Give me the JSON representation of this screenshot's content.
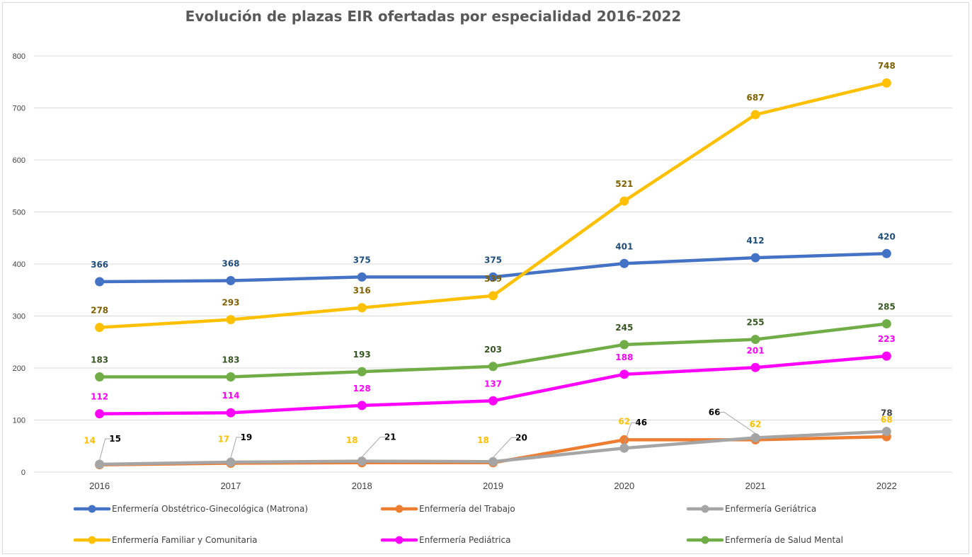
{
  "chart_data": {
    "type": "line",
    "title": "Evolución de plazas EIR ofertadas por especialidad 2016-2022",
    "xlabel": "",
    "ylabel": "",
    "categories": [
      "2016",
      "2017",
      "2018",
      "2019",
      "2020",
      "2021",
      "2022"
    ],
    "ylim": [
      0,
      800
    ],
    "yticks": [
      0,
      100,
      200,
      300,
      400,
      500,
      600,
      700,
      800
    ],
    "grid": true,
    "legend_position": "bottom",
    "series": [
      {
        "name": "Enfermería Obstétrico-Ginecológica (Matrona)",
        "color": "#4472C4",
        "label_color": "#1F4E79",
        "values": [
          366,
          368,
          375,
          375,
          401,
          412,
          420
        ],
        "labels": [
          "366",
          "368",
          "375",
          "375",
          "401",
          "412",
          "420"
        ]
      },
      {
        "name": "Enfermería Familiar y Comunitaria",
        "color": "#FFC000",
        "label_color": "#7F6000",
        "values": [
          278,
          293,
          316,
          339,
          521,
          687,
          748
        ],
        "labels": [
          "278",
          "293",
          "316",
          "339",
          "521",
          "687",
          "748"
        ]
      },
      {
        "name": "Enfermería de Salud Mental",
        "color": "#70AD47",
        "label_color": "#375623",
        "values": [
          183,
          183,
          193,
          203,
          245,
          255,
          285
        ],
        "labels": [
          "183",
          "183",
          "193",
          "203",
          "245",
          "255",
          "285"
        ]
      },
      {
        "name": "Enfermería Pediátrica",
        "color": "#FF00FF",
        "label_color": "#FF00FF",
        "values": [
          112,
          114,
          128,
          137,
          188,
          201,
          223
        ],
        "labels": [
          "112",
          "114",
          "128",
          "137",
          "188",
          "201",
          "223"
        ]
      },
      {
        "name": "Enfermería del Trabajo",
        "color": "#ED7D31",
        "label_color": "#FFC000",
        "values": [
          14,
          17,
          18,
          18,
          62,
          62,
          68
        ],
        "labels": [
          "14",
          "17",
          "18",
          "18",
          "62",
          "62",
          "68"
        ]
      },
      {
        "name": "Enfermería Geriátrica",
        "color": "#A5A5A5",
        "label_color": "#000000",
        "values": [
          15,
          19,
          21,
          20,
          46,
          66,
          78
        ],
        "labels": [
          "15",
          "19",
          "21",
          "20",
          "46",
          "66",
          "78"
        ]
      }
    ],
    "legend_order": [
      "Enfermería Obstétrico-Ginecológica (Matrona)",
      "Enfermería del Trabajo",
      "Enfermería Geriátrica",
      "Enfermería Familiar y Comunitaria",
      "Enfermería Pediátrica",
      "Enfermería de Salud Mental"
    ]
  }
}
